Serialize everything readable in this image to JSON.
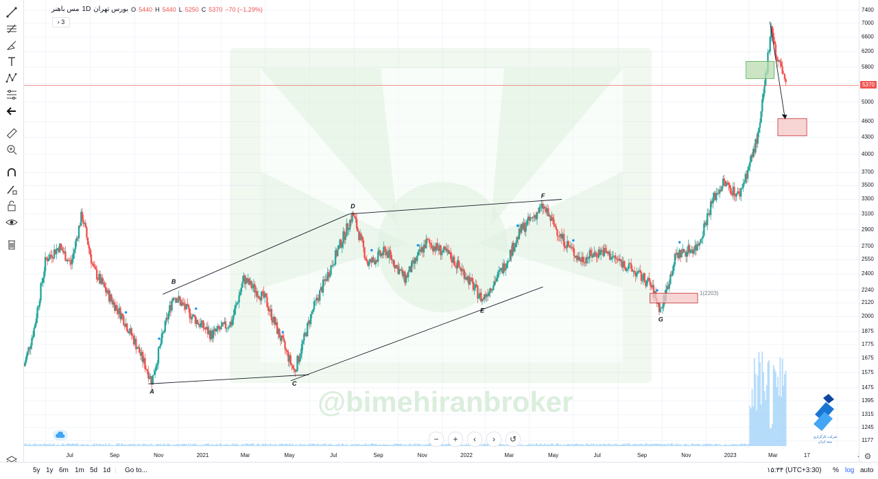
{
  "legend": {
    "symbol": "مس باهنر",
    "interval": "1D",
    "exchange": "بورس تهران",
    "o_label": "O",
    "o_value": "5440",
    "h_label": "H",
    "h_value": "5440",
    "l_label": "L",
    "l_value": "5250",
    "c_label": "C",
    "c_value": "5370",
    "change": "−70 (−1.29%)",
    "indicators_toggle": "3"
  },
  "colors": {
    "up": "#26a69a",
    "down": "#ef5350",
    "line": "#131722",
    "zone_green": "#b9dcb0",
    "zone_red": "#f4c7c7",
    "volume": "#90caf9",
    "watermark": "#dbeedd"
  },
  "watermark": {
    "text": "@bimehiranbroker"
  },
  "broker_logo": {
    "line1": "شرکت کارگزاری",
    "line2": "بیمه ایران"
  },
  "price_axis": {
    "ticks": [
      "7400",
      "7000",
      "6600",
      "6200",
      "5800",
      "5400",
      "5000",
      "4600",
      "4300",
      "4000",
      "3700",
      "3500",
      "3300",
      "3100",
      "2900",
      "2700",
      "2550",
      "2400",
      "2240",
      "2120",
      "2000",
      "1875",
      "1775",
      "1675",
      "1575",
      "1475",
      "1395",
      "1315",
      "1245",
      "1177"
    ],
    "last_price": "5370"
  },
  "time_axis": {
    "labels": [
      "Jul",
      "Sep",
      "Nov",
      "2021",
      "Mar",
      "May",
      "Jul",
      "Sep",
      "Nov",
      "2022",
      "Mar",
      "May",
      "Jul",
      "Sep",
      "Nov",
      "2023",
      "Mar",
      "17",
      "Jul"
    ]
  },
  "chart_data": {
    "type": "candlestick",
    "title": "مس باهنر · 1D · بورس تهران",
    "xlabel": "",
    "ylabel": "",
    "y_scale": "log",
    "ylim": [
      1150,
      7600
    ],
    "x_range": [
      "2020-06-01",
      "2023-07-31"
    ],
    "last_close": 5370,
    "pattern_points": [
      {
        "label": "A",
        "date": "2020-11-25",
        "price": 1500
      },
      {
        "label": "B",
        "date": "2020-12-25",
        "price": 2260
      },
      {
        "label": "C",
        "date": "2021-06-10",
        "price": 1550
      },
      {
        "label": "D",
        "date": "2021-08-30",
        "price": 3120
      },
      {
        "label": "E",
        "date": "2022-02-25",
        "price": 2120
      },
      {
        "label": "F",
        "date": "2022-05-20",
        "price": 3260
      },
      {
        "label": "G",
        "date": "2022-10-30",
        "price": 2040
      }
    ],
    "trendlines": [
      {
        "from": {
          "date": "2020-11-20",
          "price": 1500
        },
        "to": {
          "date": "2021-06-30",
          "price": 1560
        }
      },
      {
        "from": {
          "date": "2020-12-10",
          "price": 2200
        },
        "to": {
          "date": "2021-08-25",
          "price": 3100
        }
      },
      {
        "from": {
          "date": "2021-06-05",
          "price": 1520
        },
        "to": {
          "date": "2022-05-20",
          "price": 2270
        }
      },
      {
        "from": {
          "date": "2021-08-25",
          "price": 3100
        },
        "to": {
          "date": "2022-06-15",
          "price": 3300
        }
      },
      {
        "from": {
          "date": "2023-03-30",
          "price": 7050
        },
        "to": {
          "date": "2023-04-20",
          "price": 4650
        }
      }
    ],
    "zones": [
      {
        "color": "green",
        "from": {
          "date": "2023-02-25",
          "price": 5950
        },
        "to": {
          "date": "2023-04-05",
          "price": 5530
        }
      },
      {
        "color": "red",
        "from": {
          "date": "2023-04-10",
          "price": 4660
        },
        "to": {
          "date": "2023-05-20",
          "price": 4330
        }
      },
      {
        "color": "red",
        "from": {
          "date": "2022-10-15",
          "price": 2210
        },
        "to": {
          "date": "2022-12-20",
          "price": 2120
        }
      }
    ],
    "zone_label": "1(2203)",
    "price_path": [
      {
        "date": "2020-06-01",
        "price": 1620
      },
      {
        "date": "2020-06-15",
        "price": 1900
      },
      {
        "date": "2020-07-01",
        "price": 2550
      },
      {
        "date": "2020-07-20",
        "price": 2700
      },
      {
        "date": "2020-08-05",
        "price": 2500
      },
      {
        "date": "2020-08-20",
        "price": 3100
      },
      {
        "date": "2020-09-05",
        "price": 2450
      },
      {
        "date": "2020-09-25",
        "price": 2200
      },
      {
        "date": "2020-10-15",
        "price": 2000
      },
      {
        "date": "2020-11-01",
        "price": 1800
      },
      {
        "date": "2020-11-25",
        "price": 1520
      },
      {
        "date": "2020-12-10",
        "price": 1850
      },
      {
        "date": "2020-12-25",
        "price": 2200
      },
      {
        "date": "2021-01-20",
        "price": 2000
      },
      {
        "date": "2021-02-15",
        "price": 1850
      },
      {
        "date": "2021-03-15",
        "price": 1950
      },
      {
        "date": "2021-04-01",
        "price": 2350
      },
      {
        "date": "2021-05-01",
        "price": 2150
      },
      {
        "date": "2021-05-20",
        "price": 1850
      },
      {
        "date": "2021-06-10",
        "price": 1580
      },
      {
        "date": "2021-07-05",
        "price": 2050
      },
      {
        "date": "2021-08-01",
        "price": 2500
      },
      {
        "date": "2021-08-30",
        "price": 3100
      },
      {
        "date": "2021-09-20",
        "price": 2500
      },
      {
        "date": "2021-10-15",
        "price": 2650
      },
      {
        "date": "2021-11-10",
        "price": 2350
      },
      {
        "date": "2021-12-10",
        "price": 2750
      },
      {
        "date": "2022-01-10",
        "price": 2600
      },
      {
        "date": "2022-02-01",
        "price": 2400
      },
      {
        "date": "2022-02-25",
        "price": 2150
      },
      {
        "date": "2022-03-25",
        "price": 2450
      },
      {
        "date": "2022-04-20",
        "price": 2900
      },
      {
        "date": "2022-05-20",
        "price": 3200
      },
      {
        "date": "2022-06-15",
        "price": 2800
      },
      {
        "date": "2022-07-10",
        "price": 2550
      },
      {
        "date": "2022-08-10",
        "price": 2650
      },
      {
        "date": "2022-09-10",
        "price": 2500
      },
      {
        "date": "2022-10-15",
        "price": 2300
      },
      {
        "date": "2022-10-30",
        "price": 2050
      },
      {
        "date": "2022-11-20",
        "price": 2600
      },
      {
        "date": "2022-12-20",
        "price": 2700
      },
      {
        "date": "2023-01-10",
        "price": 3300
      },
      {
        "date": "2023-01-25",
        "price": 3550
      },
      {
        "date": "2023-02-15",
        "price": 3350
      },
      {
        "date": "2023-03-01",
        "price": 3800
      },
      {
        "date": "2023-03-15",
        "price": 4400
      },
      {
        "date": "2023-03-25",
        "price": 5700
      },
      {
        "date": "2023-04-01",
        "price": 7000
      },
      {
        "date": "2023-04-08",
        "price": 6000
      },
      {
        "date": "2023-04-15",
        "price": 5800
      },
      {
        "date": "2023-04-22",
        "price": 5370
      }
    ]
  },
  "bottom_bar": {
    "ranges": [
      "5y",
      "1y",
      "6m",
      "1m",
      "5d",
      "1d"
    ],
    "goto": "Go to...",
    "clock": "۱۵:۳۴ (UTC+3:30)",
    "percent": "%",
    "log": "log",
    "auto": "auto"
  },
  "nav": {
    "zoom_out": "−",
    "zoom_in": "+",
    "back": "‹",
    "forward": "›",
    "reset": "↺"
  }
}
